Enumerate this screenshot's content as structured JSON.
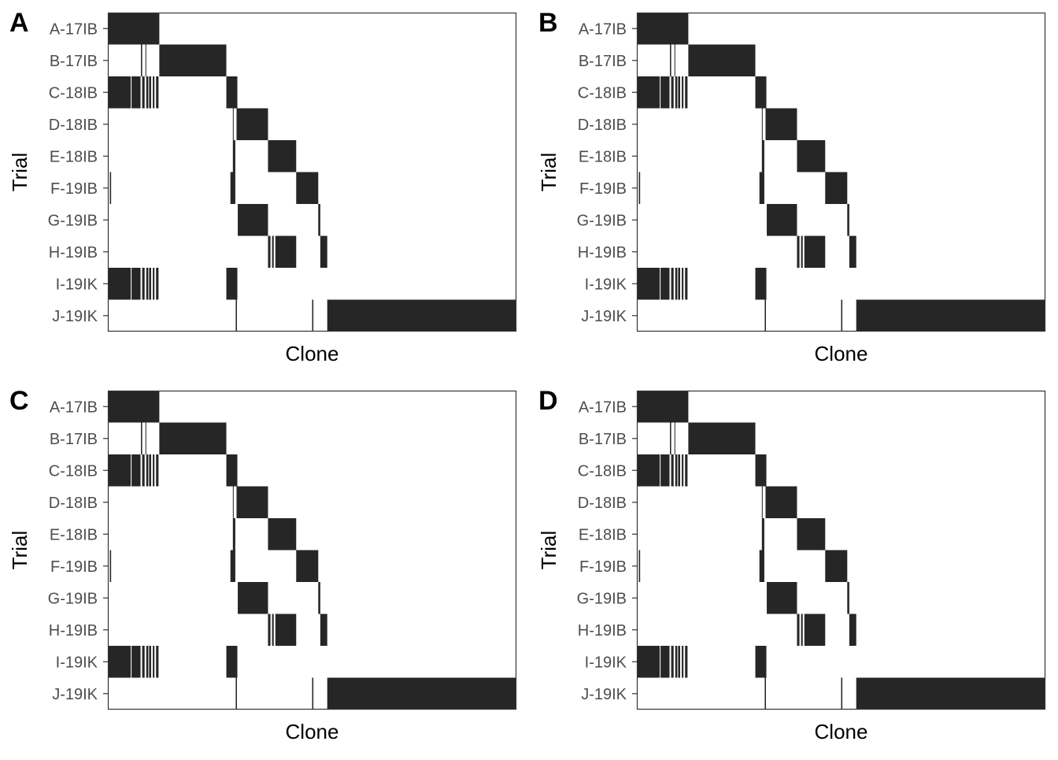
{
  "colors": {
    "fill": "#262626",
    "frame": "#333333",
    "background": "#ffffff"
  },
  "chart_data": [
    {
      "panel_label": "A",
      "type": "heatmap",
      "xlabel": "Clone",
      "ylabel": "Trial",
      "categories": [
        "A-17IB",
        "B-17IB",
        "C-18IB",
        "D-18IB",
        "E-18IB",
        "F-19IB",
        "G-19IB",
        "H-19IB",
        "I-19IK",
        "J-19IK"
      ],
      "x_range": [
        0,
        1
      ],
      "occupancy": [
        [
          [
            0.0,
            0.126
          ]
        ],
        [
          [
            0.081,
            0.084
          ],
          [
            0.092,
            0.094
          ],
          [
            0.126,
            0.29
          ]
        ],
        [
          [
            0.0,
            0.056
          ],
          [
            0.058,
            0.08
          ],
          [
            0.084,
            0.09
          ],
          [
            0.094,
            0.099
          ],
          [
            0.101,
            0.106
          ],
          [
            0.11,
            0.114
          ],
          [
            0.118,
            0.124
          ],
          [
            0.29,
            0.317
          ]
        ],
        [
          [
            0.306,
            0.308
          ],
          [
            0.315,
            0.392
          ]
        ],
        [
          [
            0.306,
            0.312
          ],
          [
            0.392,
            0.461
          ]
        ],
        [
          [
            0.005,
            0.008
          ],
          [
            0.3,
            0.312
          ],
          [
            0.461,
            0.515
          ]
        ],
        [
          [
            0.318,
            0.392
          ],
          [
            0.515,
            0.52
          ]
        ],
        [
          [
            0.392,
            0.398
          ],
          [
            0.402,
            0.406
          ],
          [
            0.41,
            0.461
          ],
          [
            0.52,
            0.537
          ]
        ],
        [
          [
            0.0,
            0.056
          ],
          [
            0.058,
            0.08
          ],
          [
            0.084,
            0.09
          ],
          [
            0.094,
            0.099
          ],
          [
            0.101,
            0.106
          ],
          [
            0.11,
            0.114
          ],
          [
            0.118,
            0.124
          ],
          [
            0.29,
            0.317
          ]
        ],
        [
          [
            0.313,
            0.316
          ],
          [
            0.5,
            0.503
          ],
          [
            0.537,
            1.0
          ]
        ]
      ]
    },
    {
      "panel_label": "B",
      "type": "heatmap",
      "xlabel": "Clone",
      "ylabel": "Trial",
      "categories": [
        "A-17IB",
        "B-17IB",
        "C-18IB",
        "D-18IB",
        "E-18IB",
        "F-19IB",
        "G-19IB",
        "H-19IB",
        "I-19IK",
        "J-19IK"
      ],
      "x_range": [
        0,
        1
      ],
      "occupancy": [
        [
          [
            0.0,
            0.126
          ]
        ],
        [
          [
            0.081,
            0.084
          ],
          [
            0.092,
            0.094
          ],
          [
            0.126,
            0.29
          ]
        ],
        [
          [
            0.0,
            0.056
          ],
          [
            0.058,
            0.08
          ],
          [
            0.084,
            0.09
          ],
          [
            0.094,
            0.099
          ],
          [
            0.101,
            0.106
          ],
          [
            0.11,
            0.114
          ],
          [
            0.118,
            0.124
          ],
          [
            0.29,
            0.317
          ]
        ],
        [
          [
            0.306,
            0.308
          ],
          [
            0.315,
            0.392
          ]
        ],
        [
          [
            0.306,
            0.312
          ],
          [
            0.392,
            0.461
          ]
        ],
        [
          [
            0.005,
            0.008
          ],
          [
            0.3,
            0.312
          ],
          [
            0.461,
            0.515
          ]
        ],
        [
          [
            0.318,
            0.392
          ],
          [
            0.515,
            0.52
          ]
        ],
        [
          [
            0.392,
            0.398
          ],
          [
            0.402,
            0.406
          ],
          [
            0.41,
            0.461
          ],
          [
            0.52,
            0.537
          ]
        ],
        [
          [
            0.0,
            0.056
          ],
          [
            0.058,
            0.08
          ],
          [
            0.084,
            0.09
          ],
          [
            0.094,
            0.099
          ],
          [
            0.101,
            0.106
          ],
          [
            0.11,
            0.114
          ],
          [
            0.118,
            0.124
          ],
          [
            0.29,
            0.317
          ]
        ],
        [
          [
            0.313,
            0.316
          ],
          [
            0.5,
            0.503
          ],
          [
            0.537,
            1.0
          ]
        ]
      ]
    },
    {
      "panel_label": "C",
      "type": "heatmap",
      "xlabel": "Clone",
      "ylabel": "Trial",
      "categories": [
        "A-17IB",
        "B-17IB",
        "C-18IB",
        "D-18IB",
        "E-18IB",
        "F-19IB",
        "G-19IB",
        "H-19IB",
        "I-19IK",
        "J-19IK"
      ],
      "x_range": [
        0,
        1
      ],
      "occupancy": [
        [
          [
            0.0,
            0.126
          ]
        ],
        [
          [
            0.081,
            0.084
          ],
          [
            0.092,
            0.094
          ],
          [
            0.126,
            0.29
          ]
        ],
        [
          [
            0.0,
            0.056
          ],
          [
            0.058,
            0.08
          ],
          [
            0.084,
            0.09
          ],
          [
            0.094,
            0.099
          ],
          [
            0.101,
            0.106
          ],
          [
            0.11,
            0.114
          ],
          [
            0.118,
            0.124
          ],
          [
            0.29,
            0.317
          ]
        ],
        [
          [
            0.306,
            0.308
          ],
          [
            0.315,
            0.392
          ]
        ],
        [
          [
            0.306,
            0.312
          ],
          [
            0.392,
            0.461
          ]
        ],
        [
          [
            0.005,
            0.008
          ],
          [
            0.3,
            0.312
          ],
          [
            0.461,
            0.515
          ]
        ],
        [
          [
            0.318,
            0.392
          ],
          [
            0.515,
            0.52
          ]
        ],
        [
          [
            0.392,
            0.398
          ],
          [
            0.402,
            0.406
          ],
          [
            0.41,
            0.461
          ],
          [
            0.52,
            0.537
          ]
        ],
        [
          [
            0.0,
            0.056
          ],
          [
            0.058,
            0.08
          ],
          [
            0.084,
            0.09
          ],
          [
            0.094,
            0.099
          ],
          [
            0.101,
            0.106
          ],
          [
            0.11,
            0.114
          ],
          [
            0.118,
            0.124
          ],
          [
            0.29,
            0.317
          ]
        ],
        [
          [
            0.313,
            0.316
          ],
          [
            0.5,
            0.503
          ],
          [
            0.537,
            1.0
          ]
        ]
      ]
    },
    {
      "panel_label": "D",
      "type": "heatmap",
      "xlabel": "Clone",
      "ylabel": "Trial",
      "categories": [
        "A-17IB",
        "B-17IB",
        "C-18IB",
        "D-18IB",
        "E-18IB",
        "F-19IB",
        "G-19IB",
        "H-19IB",
        "I-19IK",
        "J-19IK"
      ],
      "x_range": [
        0,
        1
      ],
      "occupancy": [
        [
          [
            0.0,
            0.126
          ]
        ],
        [
          [
            0.081,
            0.084
          ],
          [
            0.092,
            0.094
          ],
          [
            0.126,
            0.29
          ]
        ],
        [
          [
            0.0,
            0.056
          ],
          [
            0.058,
            0.08
          ],
          [
            0.084,
            0.09
          ],
          [
            0.094,
            0.099
          ],
          [
            0.101,
            0.106
          ],
          [
            0.11,
            0.114
          ],
          [
            0.118,
            0.124
          ],
          [
            0.29,
            0.317
          ]
        ],
        [
          [
            0.306,
            0.308
          ],
          [
            0.315,
            0.392
          ]
        ],
        [
          [
            0.306,
            0.312
          ],
          [
            0.392,
            0.461
          ]
        ],
        [
          [
            0.005,
            0.008
          ],
          [
            0.3,
            0.312
          ],
          [
            0.461,
            0.515
          ]
        ],
        [
          [
            0.318,
            0.392
          ],
          [
            0.515,
            0.52
          ]
        ],
        [
          [
            0.392,
            0.398
          ],
          [
            0.402,
            0.406
          ],
          [
            0.41,
            0.461
          ],
          [
            0.52,
            0.537
          ]
        ],
        [
          [
            0.0,
            0.056
          ],
          [
            0.058,
            0.08
          ],
          [
            0.084,
            0.09
          ],
          [
            0.094,
            0.099
          ],
          [
            0.101,
            0.106
          ],
          [
            0.11,
            0.114
          ],
          [
            0.118,
            0.124
          ],
          [
            0.29,
            0.317
          ]
        ],
        [
          [
            0.313,
            0.316
          ],
          [
            0.5,
            0.503
          ],
          [
            0.537,
            1.0
          ]
        ]
      ]
    }
  ]
}
